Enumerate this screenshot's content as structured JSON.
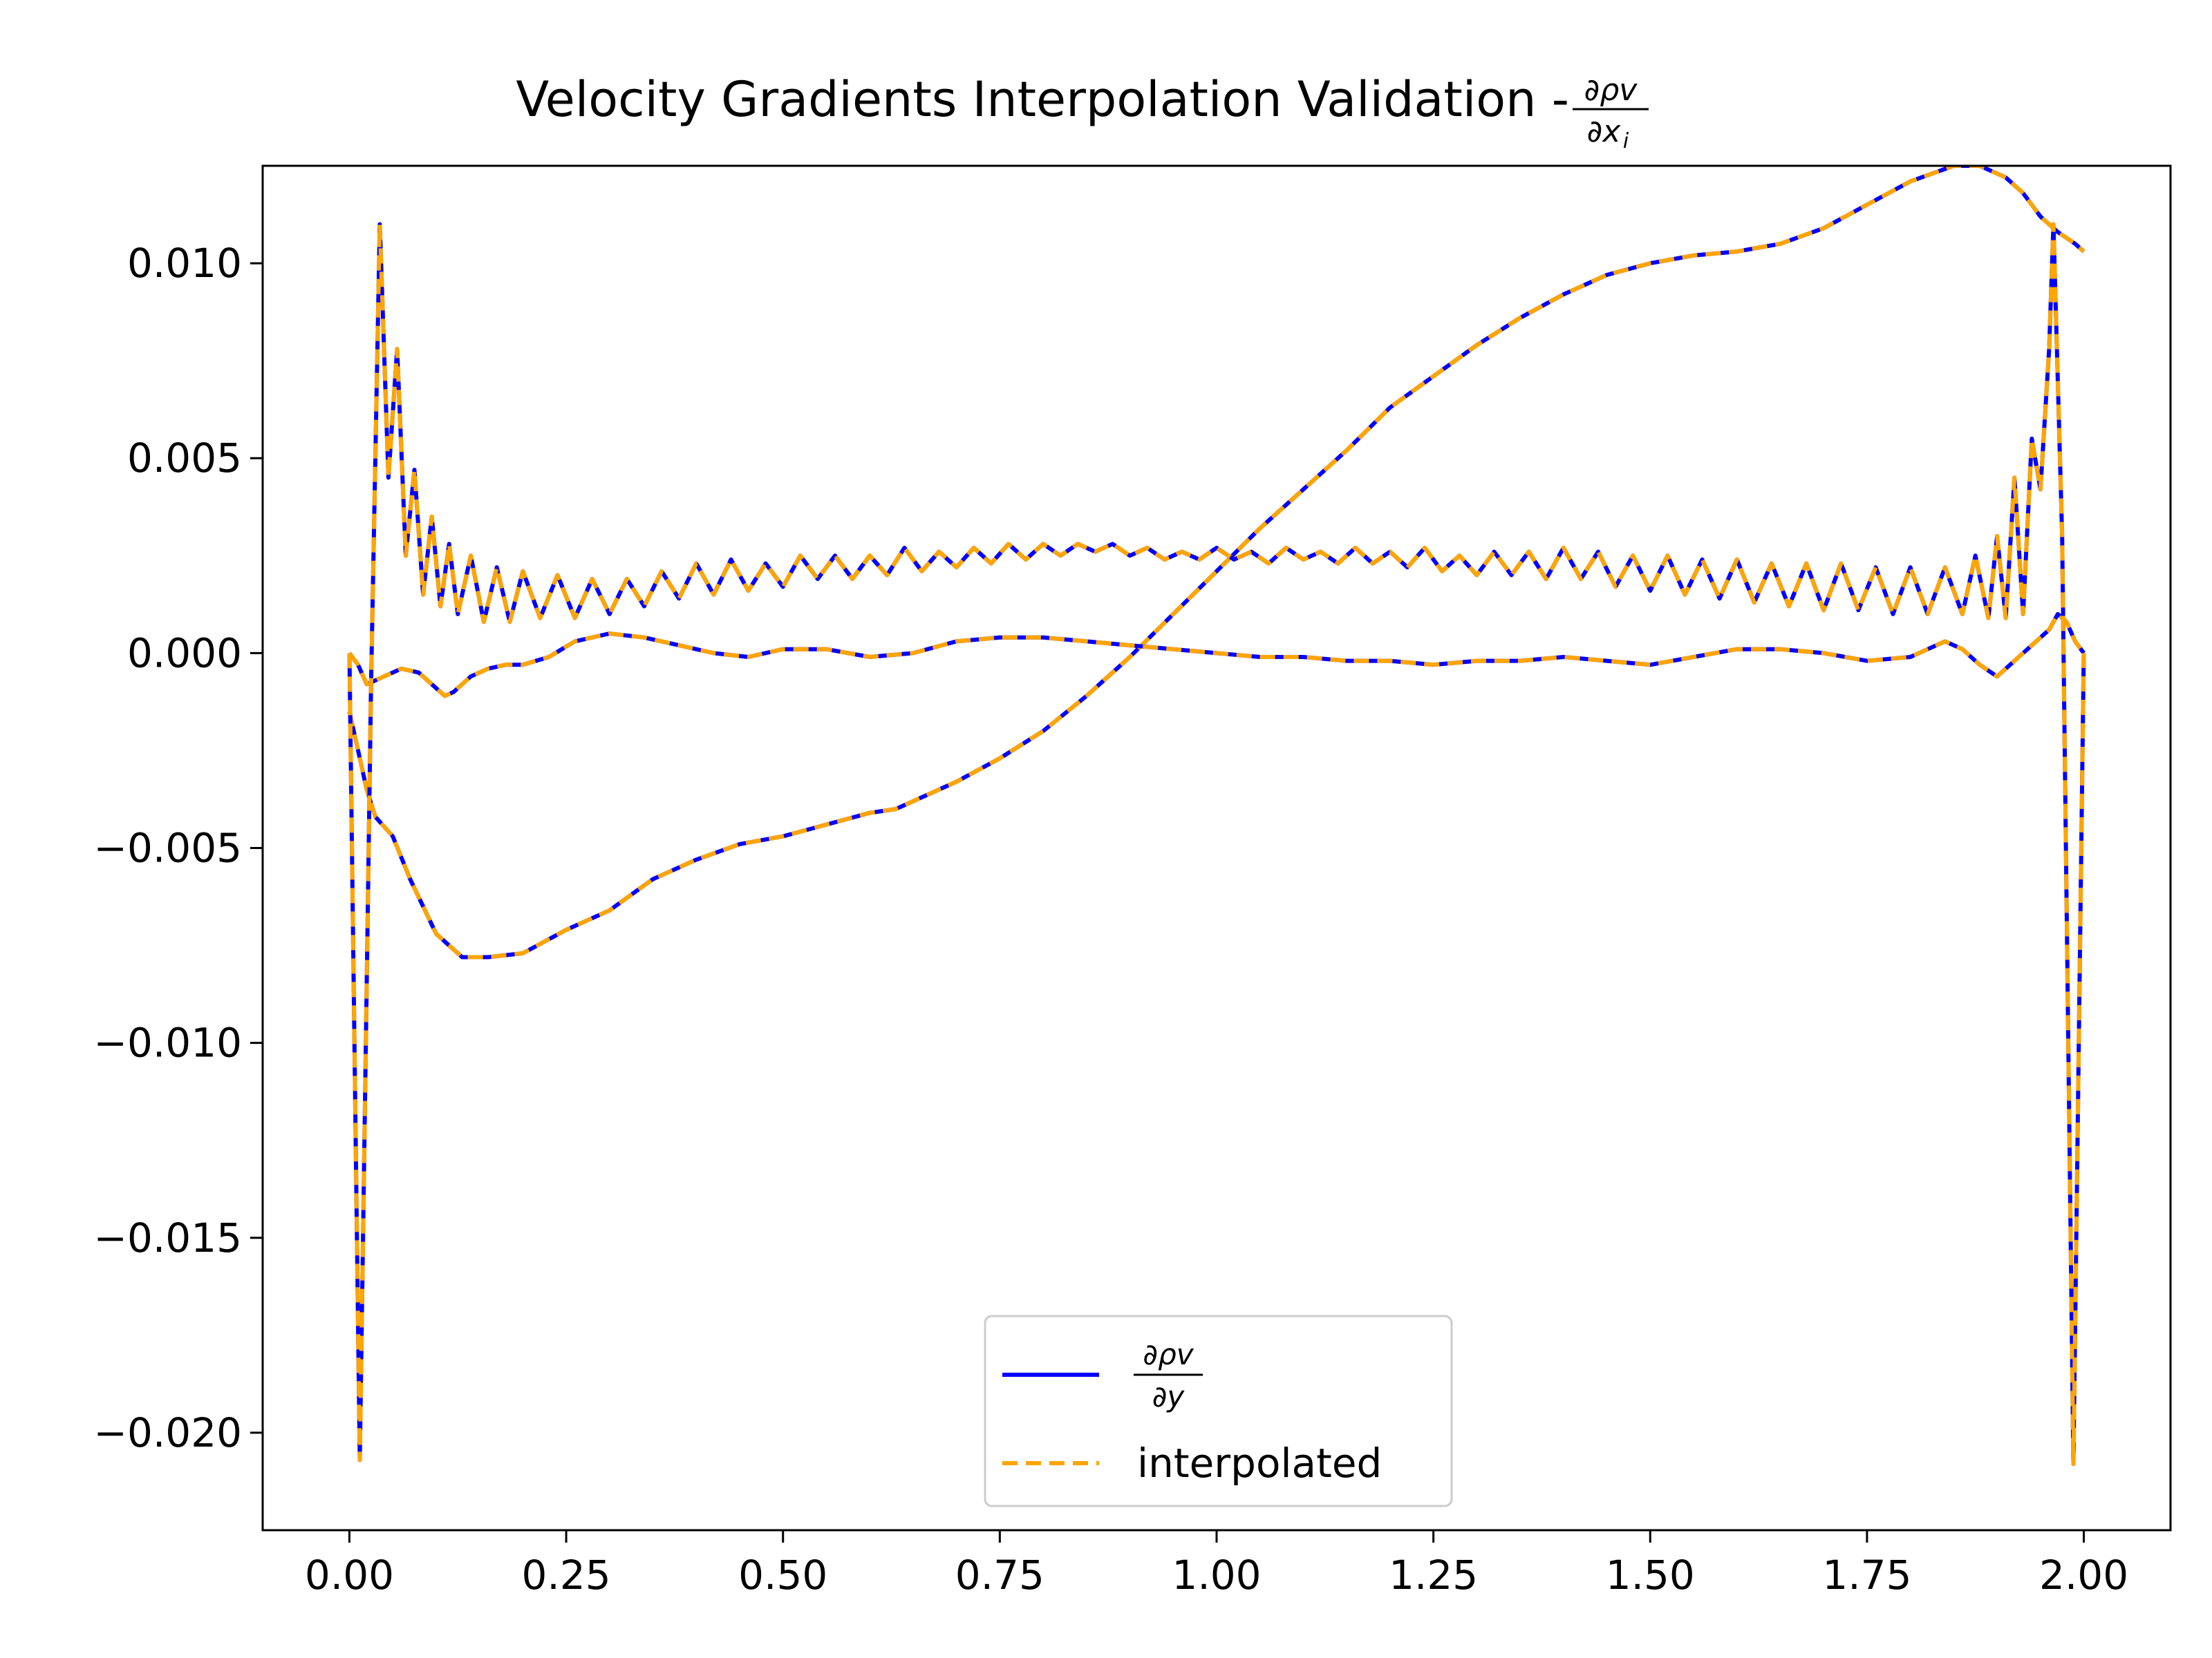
{
  "chart_data": {
    "type": "line",
    "title": "Velocity Gradients Interpolation Validation - ",
    "title_math": {
      "numerator": "∂ρv",
      "denominator": "∂x",
      "denominator_sub": "i"
    },
    "xlim": [
      -0.1,
      2.1
    ],
    "ylim": [
      -0.0225,
      0.0125
    ],
    "xticks": [
      0.0,
      0.25,
      0.5,
      0.75,
      1.0,
      1.25,
      1.5,
      1.75,
      2.0
    ],
    "xtick_labels": [
      "0.00",
      "0.25",
      "0.50",
      "0.75",
      "1.00",
      "1.25",
      "1.50",
      "1.75",
      "2.00"
    ],
    "yticks": [
      0.01,
      0.005,
      0.0,
      -0.005,
      -0.01,
      -0.015,
      -0.02
    ],
    "ytick_labels": [
      "0.010",
      "0.005",
      "0.000",
      "−0.005",
      "−0.010",
      "−0.015",
      "−0.020"
    ],
    "grid": false,
    "legend": {
      "placement": "lower-center",
      "entries": [
        {
          "label": "",
          "math": {
            "numerator": "∂ρv",
            "denominator": "∂y"
          },
          "color": "#0000ff",
          "style": "solid"
        },
        {
          "label": "interpolated",
          "color": "#ffa500",
          "style": "dashed"
        }
      ]
    },
    "series": [
      {
        "x": [
          0.0,
          0.01,
          0.02,
          0.03,
          0.05,
          0.07,
          0.1,
          0.13,
          0.16,
          0.2,
          0.25,
          0.3,
          0.35,
          0.4,
          0.45,
          0.5,
          0.55,
          0.6,
          0.63,
          0.7,
          0.75,
          0.8,
          0.85,
          0.9,
          0.95,
          1.0,
          1.05,
          1.1,
          1.15,
          1.2,
          1.25,
          1.3,
          1.35,
          1.4,
          1.45,
          1.5,
          1.55,
          1.6,
          1.65,
          1.7,
          1.75,
          1.8,
          1.85,
          1.88,
          1.91,
          1.93,
          1.95,
          1.97,
          1.99,
          2.0
        ],
        "y": [
          -0.0015,
          -0.0025,
          -0.0035,
          -0.0042,
          -0.0047,
          -0.0058,
          -0.0072,
          -0.0078,
          -0.0078,
          -0.0077,
          -0.0071,
          -0.0066,
          -0.0058,
          -0.0053,
          -0.0049,
          -0.0047,
          -0.0044,
          -0.0041,
          -0.004,
          -0.0033,
          -0.0027,
          -0.002,
          -0.0011,
          -0.0001,
          0.001,
          0.0021,
          0.0032,
          0.0042,
          0.0052,
          0.0063,
          0.0071,
          0.0079,
          0.0086,
          0.0092,
          0.0097,
          0.01,
          0.0102,
          0.0103,
          0.0105,
          0.0109,
          0.0115,
          0.0121,
          0.0125,
          0.0125,
          0.0122,
          0.0118,
          0.0112,
          0.0108,
          0.0105,
          0.0103
        ]
      },
      {
        "x": [
          0.0,
          0.01,
          0.02,
          0.04,
          0.06,
          0.08,
          0.1,
          0.11,
          0.12,
          0.13,
          0.14,
          0.16,
          0.18,
          0.2,
          0.23,
          0.26,
          0.3,
          0.34,
          0.38,
          0.42,
          0.46,
          0.5,
          0.55,
          0.6,
          0.65,
          0.7,
          0.75,
          0.8,
          0.85,
          0.9,
          0.95,
          1.0,
          1.05,
          1.1,
          1.15,
          1.2,
          1.25,
          1.3,
          1.35,
          1.4,
          1.45,
          1.5,
          1.55,
          1.6,
          1.65,
          1.7,
          1.75,
          1.8,
          1.82,
          1.84,
          1.86,
          1.88,
          1.9,
          1.92,
          1.94,
          1.96,
          1.97,
          1.98,
          1.99,
          2.0
        ],
        "y": [
          0.0,
          -0.0003,
          -0.0008,
          -0.0006,
          -0.0004,
          -0.0005,
          -0.0009,
          -0.0011,
          -0.001,
          -0.0008,
          -0.0006,
          -0.0004,
          -0.0003,
          -0.0003,
          -0.0001,
          0.0003,
          0.0005,
          0.0004,
          0.0002,
          0.0,
          -0.0001,
          0.0001,
          0.0001,
          -0.0001,
          0.0,
          0.0003,
          0.0004,
          0.0004,
          0.0003,
          0.0002,
          0.0001,
          0.0,
          -0.0001,
          -0.0001,
          -0.0002,
          -0.0002,
          -0.0003,
          -0.0002,
          -0.0002,
          -0.0001,
          -0.0002,
          -0.0003,
          -0.0001,
          0.0001,
          0.0001,
          0.0,
          -0.0002,
          -0.0001,
          0.0001,
          0.0003,
          0.0001,
          -0.0003,
          -0.0006,
          -0.0002,
          0.0002,
          0.0006,
          0.001,
          0.0008,
          0.0003,
          0.0
        ]
      },
      {
        "x": [
          0.0,
          0.012,
          0.025,
          0.035,
          0.045,
          0.055,
          0.065,
          0.075,
          0.085,
          0.095,
          0.105,
          0.115,
          0.125,
          0.14,
          0.155,
          0.17,
          0.185,
          0.2,
          0.22,
          0.24,
          0.26,
          0.28,
          0.3,
          0.32,
          0.34,
          0.36,
          0.38,
          0.4,
          0.42,
          0.44,
          0.46,
          0.48,
          0.5,
          0.52,
          0.54,
          0.56,
          0.58,
          0.6,
          0.62,
          0.64,
          0.66,
          0.68,
          0.7,
          0.72,
          0.74,
          0.76,
          0.78,
          0.8,
          0.82,
          0.84,
          0.86,
          0.88,
          0.9,
          0.92,
          0.94,
          0.96,
          0.98,
          1.0,
          1.02,
          1.04,
          1.06,
          1.08,
          1.1,
          1.12,
          1.14,
          1.16,
          1.18,
          1.2,
          1.22,
          1.24,
          1.26,
          1.28,
          1.3,
          1.32,
          1.34,
          1.36,
          1.38,
          1.4,
          1.42,
          1.44,
          1.46,
          1.48,
          1.5,
          1.52,
          1.54,
          1.56,
          1.58,
          1.6,
          1.62,
          1.64,
          1.66,
          1.68,
          1.7,
          1.72,
          1.74,
          1.76,
          1.78,
          1.8,
          1.82,
          1.84,
          1.86,
          1.875,
          1.89,
          1.9,
          1.91,
          1.92,
          1.93,
          1.94,
          1.95,
          1.96,
          1.965,
          1.975,
          1.988,
          2.0
        ],
        "y": [
          0.0,
          -0.0207,
          -0.0008,
          0.011,
          0.0045,
          0.0078,
          0.0025,
          0.0047,
          0.0015,
          0.0035,
          0.0012,
          0.0028,
          0.001,
          0.0025,
          0.0008,
          0.0022,
          0.0008,
          0.0021,
          0.0009,
          0.002,
          0.0009,
          0.0019,
          0.001,
          0.0019,
          0.0012,
          0.0021,
          0.0014,
          0.0023,
          0.0015,
          0.0024,
          0.0016,
          0.0023,
          0.0017,
          0.0025,
          0.0019,
          0.0025,
          0.0019,
          0.0025,
          0.002,
          0.0027,
          0.0021,
          0.0026,
          0.0022,
          0.0027,
          0.0023,
          0.0028,
          0.0024,
          0.0028,
          0.0025,
          0.0028,
          0.0026,
          0.0028,
          0.0025,
          0.0027,
          0.0024,
          0.0026,
          0.0024,
          0.0027,
          0.0024,
          0.0026,
          0.0023,
          0.0027,
          0.0024,
          0.0026,
          0.0023,
          0.0027,
          0.0023,
          0.0026,
          0.0022,
          0.0027,
          0.0021,
          0.0025,
          0.002,
          0.0026,
          0.002,
          0.0026,
          0.0019,
          0.0027,
          0.0019,
          0.0026,
          0.0017,
          0.0025,
          0.0016,
          0.0025,
          0.0015,
          0.0024,
          0.0014,
          0.0024,
          0.0013,
          0.0023,
          0.0012,
          0.0023,
          0.0011,
          0.0023,
          0.0011,
          0.0022,
          0.001,
          0.0022,
          0.001,
          0.0022,
          0.001,
          0.0025,
          0.0009,
          0.003,
          0.0009,
          0.0045,
          0.001,
          0.0055,
          0.0042,
          0.0078,
          0.011,
          0.003,
          -0.0208,
          0.0
        ]
      }
    ]
  }
}
